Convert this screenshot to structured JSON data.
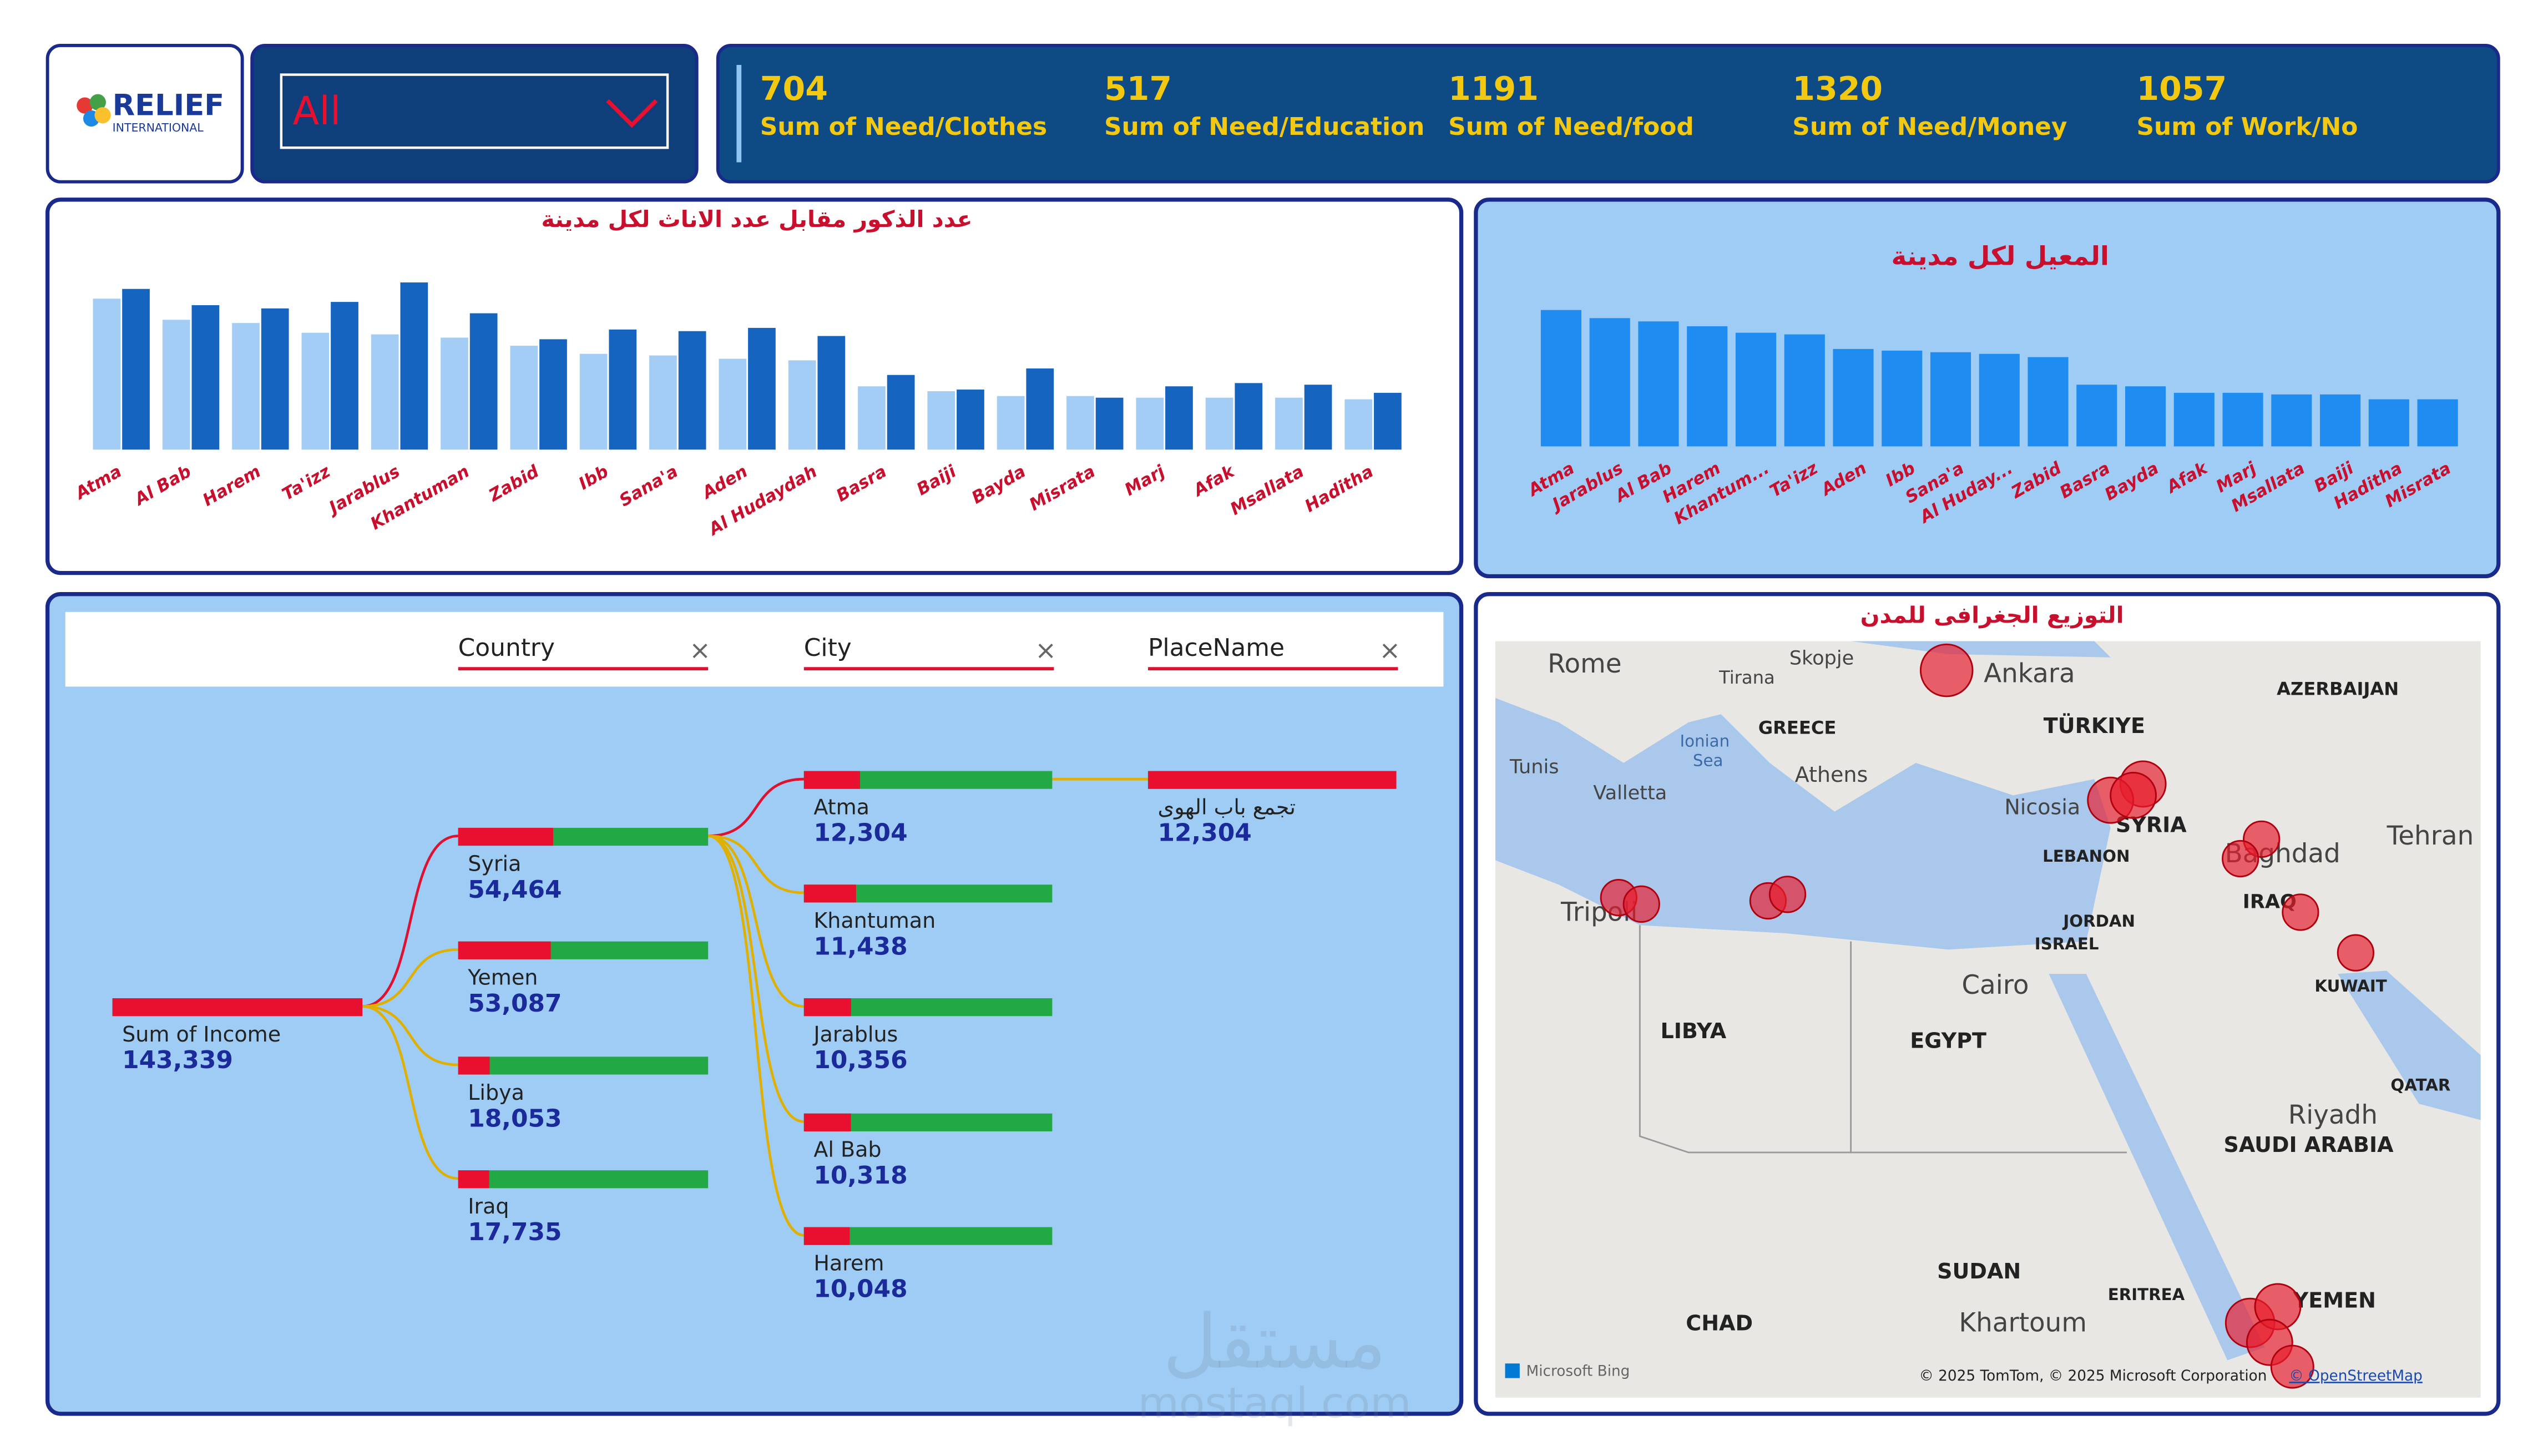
{
  "header": {
    "logo": "RELIEF",
    "logo_sub": "INTERNATIONAL"
  },
  "slicer": {
    "value": "All"
  },
  "kpis": [
    {
      "value": 704,
      "label": "Sum of Need/Clothes"
    },
    {
      "value": 517,
      "label": "Sum of Need/Education"
    },
    {
      "value": 1191,
      "label": "Sum of Need/food"
    },
    {
      "value": 1320,
      "label": "Sum of Need/Money"
    },
    {
      "value": 1057,
      "label": "Sum of Work/No"
    }
  ],
  "chart_data": [
    {
      "type": "bar",
      "title": "عدد الذكور مقابل عدد الاناث لكل مدينة",
      "categories": [
        "Atma",
        "Al Bab",
        "Harem",
        "Ta'izz",
        "Jarablus",
        "Khantuman",
        "Zabid",
        "Ibb",
        "Sana'a",
        "Aden",
        "Al Hudaydah",
        "Basra",
        "Baiji",
        "Bayda",
        "Misrata",
        "Marj",
        "Afak",
        "Msallata",
        "Haditha"
      ],
      "series": [
        {
          "color": "#a3cdf4",
          "values": [
            93,
            80,
            78,
            72,
            71,
            69,
            64,
            59,
            58,
            56,
            55,
            39,
            36,
            33,
            33,
            32,
            32,
            32,
            31
          ]
        },
        {
          "color": "#1565c0",
          "values": [
            99,
            89,
            87,
            91,
            103,
            84,
            68,
            74,
            73,
            75,
            70,
            46,
            37,
            50,
            32,
            39,
            41,
            40,
            35
          ]
        }
      ]
    },
    {
      "type": "bar",
      "title": "المعيل لكل مدينة",
      "categories": [
        "Atma",
        "Jarablus",
        "Al Bab",
        "Harem",
        "Khantum...",
        "Ta'izz",
        "Aden",
        "Ibb",
        "Sana'a",
        "Al Huday...",
        "Zabid",
        "Basra",
        "Bayda",
        "Afak",
        "Marj",
        "Msallata",
        "Baiji",
        "Haditha",
        "Misrata"
      ],
      "color": "#1e8cf0",
      "values": [
        84,
        79,
        77,
        74,
        70,
        69,
        60,
        59,
        58,
        57,
        55,
        38,
        37,
        33,
        33,
        32,
        32,
        29,
        29
      ]
    }
  ],
  "tree": {
    "levels": [
      "Country",
      "City",
      "PlaceName"
    ],
    "root": {
      "name": "Sum of Income",
      "value": 143339,
      "value_label": "143,339"
    },
    "countries": [
      {
        "name": "Syria",
        "value": 54464,
        "value_label": "54,464"
      },
      {
        "name": "Yemen",
        "value": 53087,
        "value_label": "53,087"
      },
      {
        "name": "Libya",
        "value": 18053,
        "value_label": "18,053"
      },
      {
        "name": "Iraq",
        "value": 17735,
        "value_label": "17,735"
      }
    ],
    "cities": [
      {
        "name": "Atma",
        "value": 12304,
        "value_label": "12,304"
      },
      {
        "name": "Khantuman",
        "value": 11438,
        "value_label": "11,438"
      },
      {
        "name": "Jarablus",
        "value": 10356,
        "value_label": "10,356"
      },
      {
        "name": "Al Bab",
        "value": 10318,
        "value_label": "10,318"
      },
      {
        "name": "Harem",
        "value": 10048,
        "value_label": "10,048"
      }
    ],
    "places": [
      {
        "name": "تجمع باب الهوى",
        "value": 12304,
        "value_label": "12,304"
      }
    ]
  },
  "map": {
    "title": "التوزيع الجغرافى للمدن",
    "labels": [
      "Rome",
      "Skopje",
      "Ankara",
      "Tirana",
      "TÜRKIYE",
      "AZERBAIJAN",
      "GREECE",
      "Ionian",
      "Sea",
      "Tunis",
      "Athens",
      "Valletta",
      "Nicosia",
      "SYRIA",
      "Baghdad",
      "Tehran",
      "LEBANON",
      "Tripoli",
      "IRAQ",
      "JORDAN",
      "ISRAEL",
      "Cairo",
      "KUWAIT",
      "LIBYA",
      "EGYPT",
      "QATAR",
      "Riyadh",
      "SAUDI ARABIA",
      "SUDAN",
      "ERITREA",
      "YEMEN",
      "Khartoum",
      "CHAD"
    ],
    "attribution": "© 2025 TomTom, © 2025 Microsoft Corporation",
    "osm": "© OpenStreetMap",
    "bing": "Microsoft Bing"
  },
  "watermark": {
    "arabic": "مستقل",
    "latin": "mostaql.com"
  }
}
